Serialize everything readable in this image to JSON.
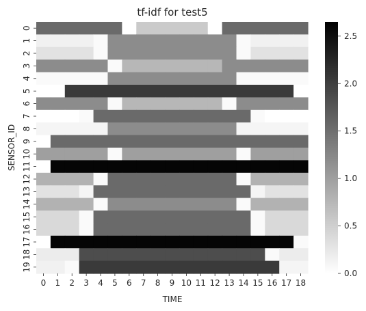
{
  "chart_data": {
    "type": "heatmap",
    "title": "tf-idf for test5",
    "xlabel": "TIME",
    "ylabel": "SENSOR_ID",
    "x_categories": [
      "0",
      "1",
      "2",
      "3",
      "4",
      "5",
      "6",
      "7",
      "8",
      "9",
      "10",
      "11",
      "12",
      "13",
      "14",
      "15",
      "16",
      "17",
      "18"
    ],
    "y_categories": [
      "0",
      "1",
      "2",
      "3",
      "4",
      "5",
      "6",
      "7",
      "8",
      "9",
      "10",
      "11",
      "12",
      "13",
      "14",
      "15",
      "16",
      "17",
      "18",
      "19"
    ],
    "values": [
      [
        1.55,
        1.55,
        1.55,
        1.55,
        1.55,
        1.55,
        0.0,
        0.55,
        0.55,
        0.55,
        0.55,
        0.55,
        0.0,
        1.55,
        1.55,
        1.55,
        1.55,
        1.55,
        1.55
      ],
      [
        0.15,
        0.15,
        0.15,
        0.15,
        0.05,
        1.2,
        1.2,
        1.2,
        1.2,
        1.2,
        1.2,
        1.2,
        1.2,
        1.2,
        0.05,
        0.15,
        0.15,
        0.15,
        0.15
      ],
      [
        0.3,
        0.3,
        0.3,
        0.3,
        0.05,
        1.2,
        1.2,
        1.2,
        1.2,
        1.2,
        1.2,
        1.2,
        1.2,
        1.2,
        0.05,
        0.3,
        0.3,
        0.3,
        0.3
      ],
      [
        1.2,
        1.2,
        1.2,
        1.2,
        1.2,
        0.05,
        0.75,
        0.75,
        0.75,
        0.75,
        0.75,
        0.75,
        0.75,
        1.2,
        1.2,
        1.2,
        1.2,
        1.2,
        1.2
      ],
      [
        0.05,
        0.05,
        0.05,
        0.05,
        0.05,
        1.2,
        1.2,
        1.2,
        1.2,
        1.2,
        1.2,
        1.2,
        1.2,
        1.2,
        0.05,
        0.05,
        0.05,
        0.05,
        0.05
      ],
      [
        0.0,
        0.0,
        2.05,
        2.05,
        2.05,
        2.05,
        2.05,
        2.05,
        2.05,
        2.05,
        2.05,
        2.05,
        2.05,
        2.05,
        2.05,
        2.05,
        2.05,
        2.05,
        0.0
      ],
      [
        1.2,
        1.2,
        1.2,
        1.2,
        1.2,
        0.05,
        0.75,
        0.75,
        0.75,
        0.75,
        0.75,
        0.75,
        0.75,
        0.05,
        1.2,
        1.2,
        1.2,
        1.2,
        1.2
      ],
      [
        0.0,
        0.0,
        0.0,
        0.05,
        1.55,
        1.55,
        1.55,
        1.55,
        1.55,
        1.55,
        1.55,
        1.55,
        1.55,
        1.55,
        1.55,
        0.05,
        0.0,
        0.0,
        0.0
      ],
      [
        0.1,
        0.1,
        0.1,
        0.1,
        0.1,
        1.2,
        1.2,
        1.2,
        1.2,
        1.2,
        1.2,
        1.2,
        1.2,
        1.2,
        0.1,
        0.1,
        0.1,
        0.1,
        0.1
      ],
      [
        0.0,
        1.55,
        1.55,
        1.55,
        1.55,
        1.55,
        1.55,
        1.55,
        1.55,
        1.55,
        1.55,
        1.55,
        1.55,
        1.55,
        1.55,
        1.55,
        1.55,
        1.55,
        1.55
      ],
      [
        1.0,
        1.0,
        1.0,
        1.0,
        1.0,
        0.05,
        1.0,
        1.0,
        1.0,
        1.0,
        1.0,
        1.0,
        1.0,
        1.0,
        0.05,
        1.0,
        1.0,
        1.0,
        1.0
      ],
      [
        0.0,
        2.6,
        2.6,
        2.6,
        2.6,
        2.6,
        2.6,
        2.6,
        2.6,
        2.6,
        2.6,
        2.6,
        2.6,
        2.6,
        2.6,
        2.6,
        2.6,
        2.6,
        2.6
      ],
      [
        0.8,
        0.8,
        0.8,
        0.8,
        0.05,
        1.55,
        1.55,
        1.55,
        1.55,
        1.55,
        1.55,
        1.55,
        1.55,
        1.55,
        0.05,
        0.8,
        0.8,
        0.8,
        0.8
      ],
      [
        0.3,
        0.3,
        0.3,
        0.1,
        1.55,
        1.55,
        1.55,
        1.55,
        1.55,
        1.55,
        1.55,
        1.55,
        1.55,
        1.55,
        1.55,
        0.1,
        0.3,
        0.3,
        0.3
      ],
      [
        0.8,
        0.8,
        0.8,
        0.8,
        0.05,
        1.2,
        1.2,
        1.2,
        1.2,
        1.2,
        1.2,
        1.2,
        1.2,
        1.2,
        0.05,
        0.8,
        0.8,
        0.8,
        0.8
      ],
      [
        0.4,
        0.4,
        0.4,
        0.05,
        1.55,
        1.55,
        1.55,
        1.55,
        1.55,
        1.55,
        1.55,
        1.55,
        1.55,
        1.55,
        1.55,
        0.05,
        0.4,
        0.4,
        0.4
      ],
      [
        0.4,
        0.4,
        0.4,
        0.05,
        1.55,
        1.55,
        1.55,
        1.55,
        1.55,
        1.55,
        1.55,
        1.55,
        1.55,
        1.55,
        1.55,
        0.05,
        0.4,
        0.4,
        0.4
      ],
      [
        0.0,
        2.6,
        2.6,
        2.6,
        2.6,
        2.6,
        2.6,
        2.6,
        2.6,
        2.6,
        2.6,
        2.6,
        2.6,
        2.6,
        2.6,
        2.6,
        2.6,
        2.6,
        0.05
      ],
      [
        0.2,
        0.2,
        0.2,
        1.85,
        1.85,
        1.85,
        1.85,
        1.85,
        1.85,
        1.85,
        1.85,
        1.85,
        1.85,
        1.85,
        1.85,
        1.85,
        0.05,
        0.2,
        0.2
      ],
      [
        0.15,
        0.15,
        0.05,
        2.05,
        2.05,
        2.05,
        2.05,
        2.05,
        2.05,
        2.05,
        2.05,
        2.05,
        2.05,
        2.05,
        2.05,
        2.05,
        2.05,
        0.1,
        0.1
      ]
    ],
    "colormap": "Greys",
    "vmin": 0.0,
    "vmax": 2.65,
    "colorbar_ticks": [
      0.0,
      0.5,
      1.0,
      1.5,
      2.0,
      2.5
    ],
    "colorbar_tick_labels": [
      "0.0",
      "0.5",
      "1.0",
      "1.5",
      "2.0",
      "2.5"
    ],
    "colorbar_colors": [
      "#ffffff",
      "#000000"
    ],
    "legend": "colorbar-right",
    "grid": false
  }
}
